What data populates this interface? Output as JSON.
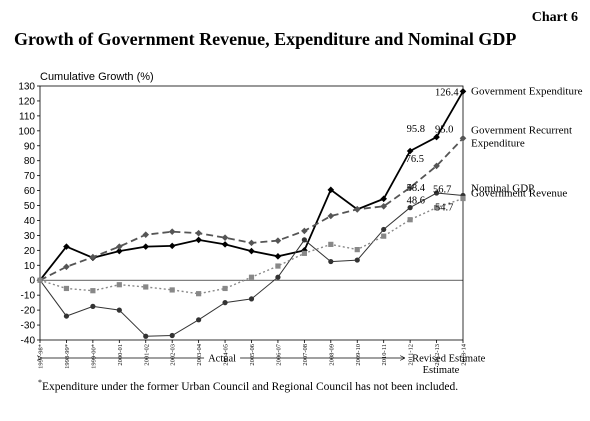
{
  "header": {
    "chart_number": "Chart 6",
    "title": "Growth of Government Revenue, Expenditure and Nominal GDP"
  },
  "footnote": {
    "mark": "*",
    "text": "Expenditure under the former Urban Council and Regional Council has not been included."
  },
  "chart_data": {
    "type": "line",
    "ylabel": "Cumulative Growth (%)",
    "ylim": [
      -40,
      130
    ],
    "ytick_step": 10,
    "grid": false,
    "legend": "direct labels at right end of series",
    "categories": [
      "1997-98*",
      "1998-99*",
      "1999-00*",
      "2000-01",
      "2001-02",
      "2002-03",
      "2003-04",
      "2004-05",
      "2005-06",
      "2006-07",
      "2007-08",
      "2008-09",
      "2009-10",
      "2010-11",
      "2011-12",
      "2012-13",
      "2013-14"
    ],
    "period_labels": {
      "actual": "Actual",
      "revised": "Revised Estimate",
      "estimate": "Estimate"
    },
    "series": [
      {
        "name": "Government Expenditure",
        "color": "#000000",
        "marker": "diamond",
        "dash": "solid",
        "width": 1.8,
        "values": [
          0,
          22.5,
          15.0,
          19.5,
          22.5,
          23.0,
          27.0,
          24.0,
          19.5,
          16.0,
          20.0,
          60.5,
          47.5,
          54.5,
          86.5,
          95.8,
          126.4
        ],
        "end_label": "Government Expenditure"
      },
      {
        "name": "Government Recurrent Expenditure",
        "color": "#555555",
        "marker": "diamond",
        "dash": "dashed",
        "width": 1.8,
        "values": [
          0,
          9.0,
          15.5,
          22.5,
          30.5,
          32.5,
          31.5,
          28.5,
          25.0,
          26.5,
          33.0,
          43.0,
          47.5,
          49.5,
          62.0,
          76.5,
          95.0
        ],
        "end_label": [
          "Government Recurrent",
          "Expenditure"
        ]
      },
      {
        "name": "Nominal GDP",
        "color": "#333333",
        "marker": "circle",
        "dash": "solid",
        "width": 1.0,
        "values": [
          0,
          -24.0,
          -17.5,
          -20.0,
          -37.5,
          -37.0,
          -26.5,
          -15.0,
          -12.5,
          2.0,
          27.0,
          12.5,
          13.5,
          34.0,
          48.6,
          58.4,
          56.7
        ],
        "end_label": "Nominal GDP"
      },
      {
        "name": "Government Revenue",
        "color": "#888888",
        "marker": "square",
        "dash": "dotted",
        "width": 1.4,
        "values": [
          0,
          -5.5,
          -7.0,
          -3.0,
          -4.5,
          -6.5,
          -9.0,
          -5.5,
          2.0,
          9.5,
          18.0,
          24.0,
          20.5,
          29.5,
          40.5,
          48.6,
          54.7
        ],
        "end_label": "Government Revenue"
      }
    ],
    "data_labels": [
      {
        "text": "126.4",
        "value": 126.4,
        "index": 16,
        "anchor": "left"
      },
      {
        "text": "95.8",
        "value": 95.8,
        "index": 15,
        "anchor": "left"
      },
      {
        "text": "95.0",
        "value": 95.0,
        "index": 16,
        "anchor": "left"
      },
      {
        "text": "76.5",
        "value": 76.5,
        "index": 15,
        "anchor": "left"
      },
      {
        "text": "58.4",
        "value": 58.4,
        "index": 15,
        "anchor": "left"
      },
      {
        "text": "56.7",
        "value": 56.7,
        "index": 16,
        "anchor": "left"
      },
      {
        "text": "48.6",
        "value": 48.6,
        "index": 15,
        "anchor": "left"
      },
      {
        "text": "54.7",
        "value": 54.7,
        "index": 16,
        "anchor": "left"
      }
    ]
  }
}
